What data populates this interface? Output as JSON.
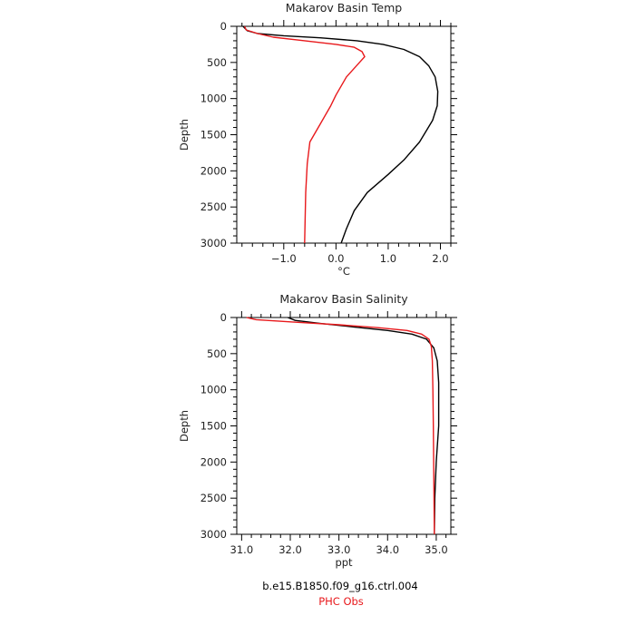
{
  "colors": {
    "model": "#000000",
    "obs": "#e8191c"
  },
  "legend": {
    "model_label": "b.e15.B1850.f09_g16.ctrl.004",
    "obs_label": "PHC Obs"
  },
  "chart_data": [
    {
      "type": "line",
      "title": "Makarov Basin Temp",
      "xlabel": "°C",
      "ylabel": "Depth",
      "xlim": [
        -1.9,
        2.2
      ],
      "ylim": [
        3000,
        0
      ],
      "y_inverted": true,
      "xticks": [
        -1.0,
        0.0,
        1.0,
        2.0
      ],
      "xtick_labels": [
        "−1.0",
        "0.0",
        "1.0",
        "2.0"
      ],
      "yticks": [
        0,
        500,
        1000,
        1500,
        2000,
        2500,
        3000
      ],
      "ytick_labels": [
        "0",
        "500",
        "1000",
        "1500",
        "2000",
        "2500",
        "3000"
      ],
      "series": [
        {
          "name": "b.e15.B1850.f09_g16.ctrl.004",
          "color": "#000000",
          "x": [
            -1.78,
            -1.7,
            -1.5,
            -1.0,
            -0.3,
            0.4,
            0.9,
            1.3,
            1.6,
            1.78,
            1.9,
            1.95,
            1.94,
            1.85,
            1.6,
            1.3,
            1.0,
            0.6,
            0.35,
            0.2,
            0.1
          ],
          "y": [
            0,
            60,
            100,
            130,
            160,
            200,
            250,
            320,
            420,
            550,
            700,
            900,
            1100,
            1300,
            1600,
            1850,
            2050,
            2300,
            2550,
            2800,
            3000
          ]
        },
        {
          "name": "PHC Obs",
          "color": "#e8191c",
          "x": [
            -1.75,
            -1.72,
            -1.5,
            -1.2,
            -0.6,
            0.0,
            0.35,
            0.5,
            0.55,
            0.45,
            0.2,
            0.0,
            -0.1,
            -0.3,
            -0.5,
            -0.55,
            -0.58,
            -0.6
          ],
          "y": [
            0,
            50,
            100,
            150,
            200,
            250,
            290,
            350,
            420,
            500,
            700,
            950,
            1100,
            1350,
            1600,
            1900,
            2300,
            3000
          ]
        }
      ]
    },
    {
      "type": "line",
      "title": "Makarov Basin Salinity",
      "xlabel": "ppt",
      "ylabel": "Depth",
      "xlim": [
        30.9,
        35.3
      ],
      "ylim": [
        3000,
        0
      ],
      "y_inverted": true,
      "xticks": [
        31.0,
        32.0,
        33.0,
        34.0,
        35.0
      ],
      "xtick_labels": [
        "31.0",
        "32.0",
        "33.0",
        "34.0",
        "35.0"
      ],
      "yticks": [
        0,
        500,
        1000,
        1500,
        2000,
        2500,
        3000
      ],
      "ytick_labels": [
        "0",
        "500",
        "1000",
        "1500",
        "2000",
        "2500",
        "3000"
      ],
      "series": [
        {
          "name": "b.e15.B1850.f09_g16.ctrl.004",
          "color": "#000000",
          "x": [
            31.95,
            32.1,
            32.6,
            33.3,
            34.0,
            34.5,
            34.8,
            34.95,
            35.02,
            35.05,
            35.05,
            35.0,
            34.97,
            34.96
          ],
          "y": [
            0,
            40,
            80,
            130,
            180,
            230,
            300,
            420,
            600,
            900,
            1500,
            2000,
            2500,
            3000
          ]
        },
        {
          "name": "PHC Obs",
          "color": "#e8191c",
          "x": [
            31.1,
            31.3,
            32.0,
            33.0,
            33.8,
            34.4,
            34.7,
            34.85,
            34.9,
            34.92,
            34.93,
            34.94,
            34.95,
            34.96
          ],
          "y": [
            0,
            30,
            60,
            100,
            140,
            180,
            230,
            300,
            400,
            600,
            1000,
            1500,
            2200,
            3000
          ]
        }
      ]
    }
  ]
}
